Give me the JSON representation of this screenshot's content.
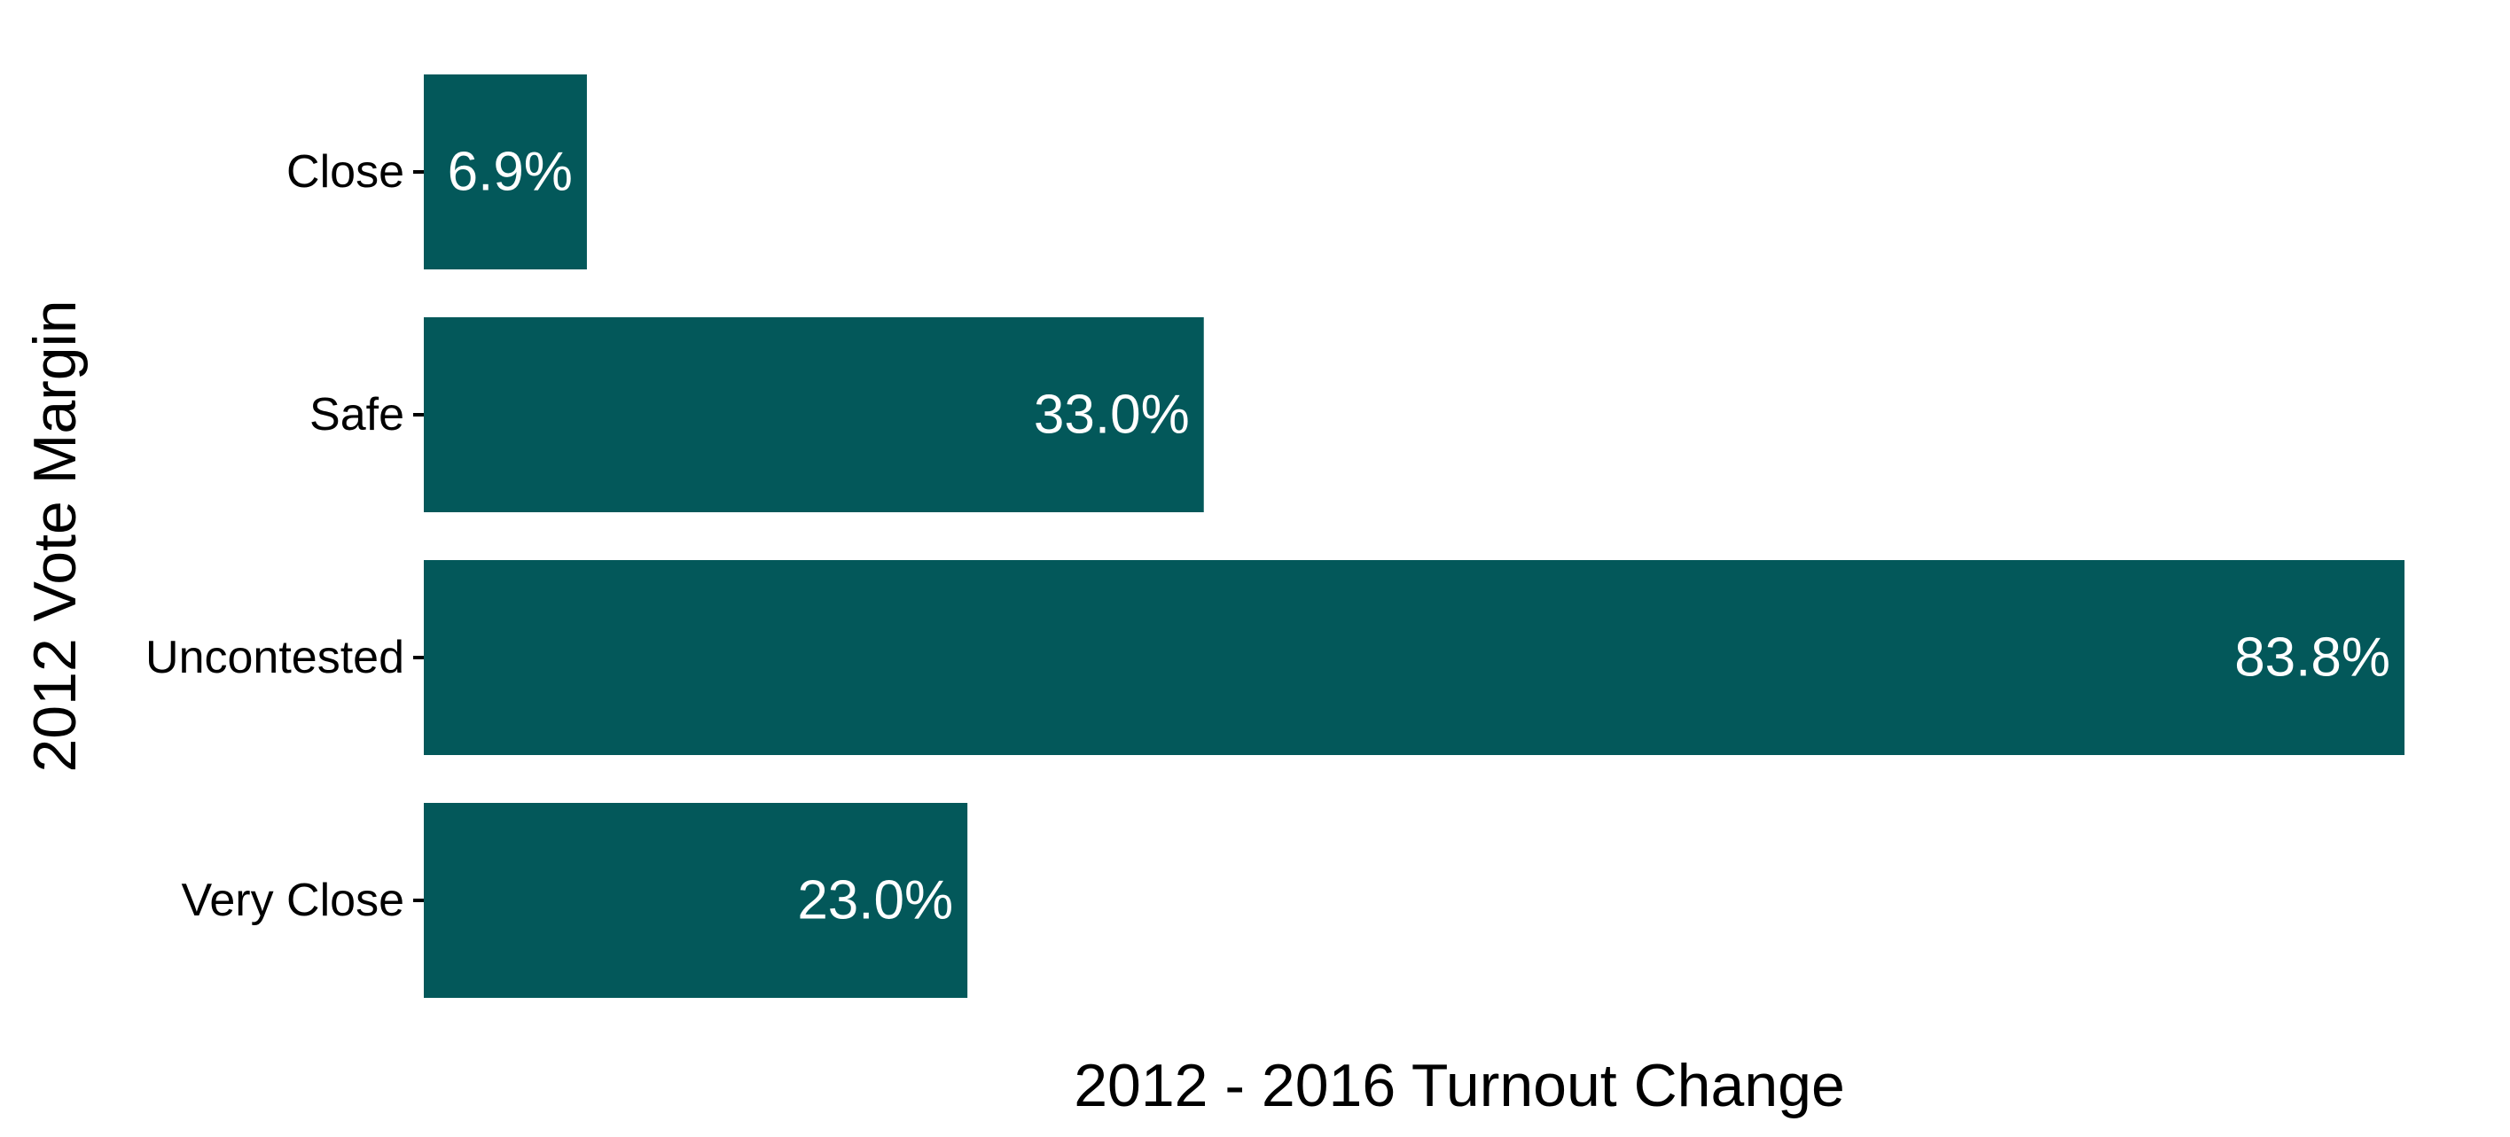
{
  "chart_data": {
    "type": "bar",
    "orientation": "horizontal",
    "title": "",
    "xlabel": "2012 - 2016 Turnout Change",
    "ylabel": "2012 Vote Margin",
    "categories": [
      "Close",
      "Safe",
      "Uncontested",
      "Very Close"
    ],
    "values": [
      6.9,
      33.0,
      83.8,
      23.0
    ],
    "value_labels": [
      "6.9%",
      "33.0%",
      "83.8%",
      "23.0%"
    ],
    "xlim": [
      0,
      83.8
    ],
    "grid": false,
    "legend": "none",
    "bar_color": "#03585A"
  }
}
